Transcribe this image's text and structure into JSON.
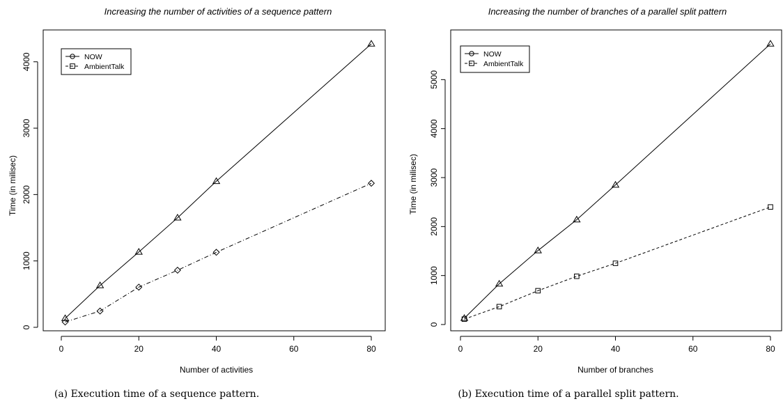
{
  "chart_data": [
    {
      "type": "line",
      "title": "Increasing the number of activities of a sequence pattern",
      "xlabel": "Number of activities",
      "ylabel": "Time (in milisec)",
      "caption": "(a) Execution time of a sequence pattern.",
      "x": [
        1,
        10,
        20,
        30,
        40,
        80
      ],
      "xlim": [
        0,
        80
      ],
      "ylim": [
        0,
        4270
      ],
      "xticks": [
        0,
        20,
        40,
        60,
        80
      ],
      "yticks": [
        0,
        1000,
        2000,
        3000,
        4000
      ],
      "grid": false,
      "legend_position": "top-left",
      "series": [
        {
          "name": "NOW",
          "values": [
            135,
            630,
            1135,
            1650,
            2200,
            4270
          ],
          "line": "solid",
          "marker": "triangle"
        },
        {
          "name": "AmbientTalk",
          "values": [
            80,
            245,
            605,
            860,
            1130,
            2170
          ],
          "line": "dashdot",
          "marker": "diamond"
        }
      ]
    },
    {
      "type": "line",
      "title": "Increasing the number of branches of a parallel split pattern",
      "xlabel": "Number of branches",
      "ylabel": "Time (in milisec)",
      "caption": "(b) Execution time of a parallel split pattern.",
      "x": [
        1,
        10,
        20,
        30,
        40,
        80
      ],
      "xlim": [
        0,
        80
      ],
      "ylim": [
        0,
        5730
      ],
      "xticks": [
        0,
        20,
        40,
        60,
        80
      ],
      "yticks": [
        0,
        1000,
        2000,
        3000,
        4000,
        5000
      ],
      "grid": false,
      "legend_position": "top-left",
      "series": [
        {
          "name": "NOW",
          "values": [
            130,
            830,
            1510,
            2140,
            2850,
            5730
          ],
          "line": "solid",
          "marker": "triangle"
        },
        {
          "name": "AmbientTalk",
          "values": [
            110,
            365,
            690,
            985,
            1250,
            2400
          ],
          "line": "dashed",
          "marker": "square"
        }
      ]
    }
  ]
}
